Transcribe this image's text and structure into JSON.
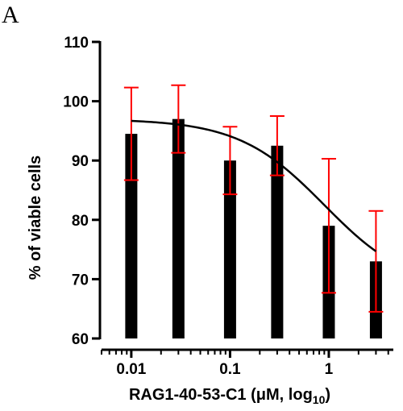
{
  "chart_data": {
    "type": "bar",
    "panel_label": "A",
    "x": [
      0.01,
      0.03,
      0.1,
      0.3,
      1,
      3
    ],
    "values": [
      94.5,
      97.0,
      90.0,
      92.5,
      79.0,
      73.0
    ],
    "error_upper": [
      102.3,
      102.7,
      95.7,
      97.5,
      90.3,
      81.5
    ],
    "error_lower": [
      86.7,
      91.3,
      84.3,
      87.5,
      67.7,
      64.5
    ],
    "fit_curve": {
      "top": 97.0,
      "bottom": 68.0,
      "ic50": 0.9,
      "hill": 1.0
    },
    "xscale": "log",
    "xlim": [
      0.005,
      4.5
    ],
    "ylim": [
      60,
      110
    ],
    "xticks": [
      0.01,
      0.1,
      1
    ],
    "xtick_labels": [
      "0.01",
      "0.1",
      "1"
    ],
    "yticks": [
      60,
      70,
      80,
      90,
      100,
      110
    ],
    "ytick_labels": [
      "60",
      "70",
      "80",
      "90",
      "100",
      "110"
    ],
    "ylabel": "% of viable cells",
    "xlabel_main": "RAG1-40-53-C1 (",
    "xlabel_unit": "μM, log",
    "xlabel_sub": "10",
    "xlabel_close": ")",
    "colors": {
      "bar": "#000000",
      "error": "#ff0000",
      "curve": "#000000",
      "axis": "#000000"
    },
    "grid": false
  }
}
